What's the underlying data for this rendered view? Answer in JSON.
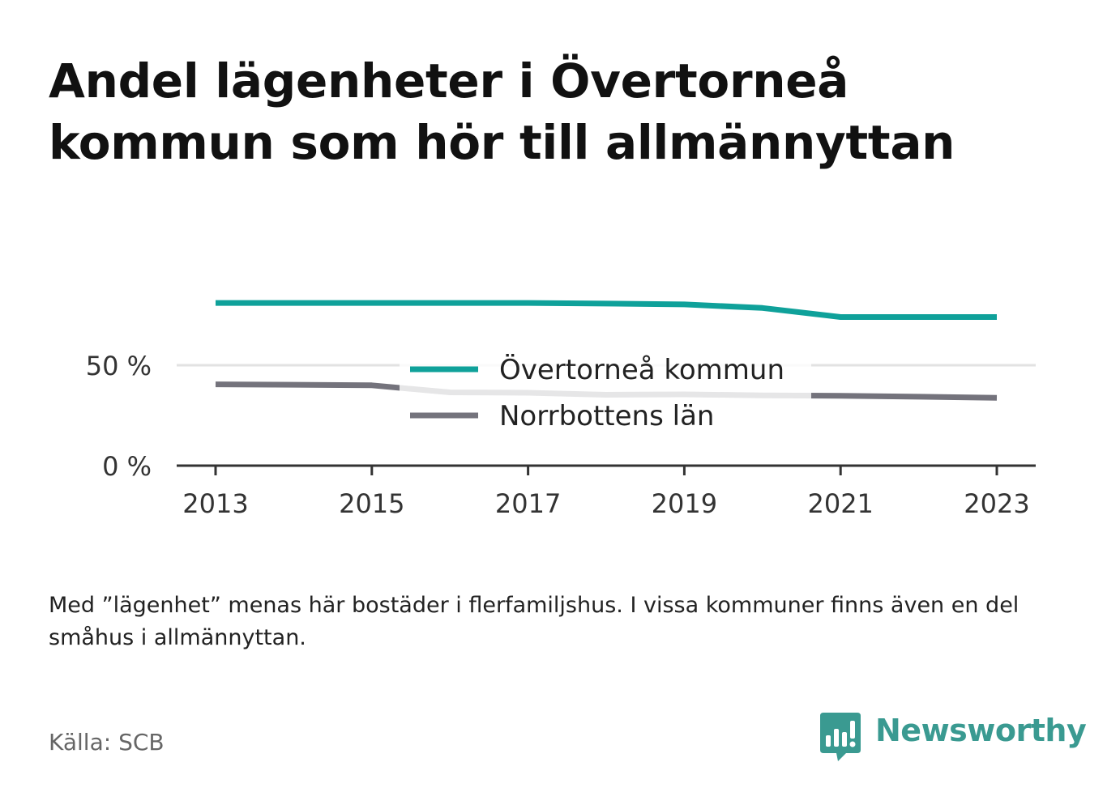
{
  "title": "Andel lägenheter i Övertorneå kommun som hör till allmännyttan",
  "note": "Med ”lägenhet” menas här bostäder i flerfamiljshus. I vissa kommuner finns även en del småhus i allmännyttan.",
  "source": "Källa: SCB",
  "brand": {
    "name": "Newsworthy",
    "icon": "bar-chart-speech-bubble-icon",
    "color": "#3a9a91"
  },
  "chart_data": {
    "type": "line",
    "x": [
      2013,
      2014,
      2015,
      2016,
      2017,
      2018,
      2019,
      2020,
      2021,
      2022,
      2023
    ],
    "x_ticks": [
      2013,
      2015,
      2017,
      2019,
      2021,
      2023
    ],
    "y_ticks": [
      0,
      50
    ],
    "y_tick_labels": [
      "0 %",
      "50 %"
    ],
    "ylim": [
      0,
      85
    ],
    "grid": true,
    "legend_position": "center",
    "series": [
      {
        "name": "Övertorneå kommun",
        "color": "#0fa19a",
        "values": [
          81,
          81,
          81,
          81,
          81,
          80.7,
          80.3,
          78.5,
          74,
          74,
          74
        ]
      },
      {
        "name": "Norrbottens län",
        "color": "#74737c",
        "values": [
          40.5,
          40.3,
          40,
          36.5,
          36.3,
          35.3,
          35.5,
          35,
          34.8,
          34.3,
          33.8
        ]
      }
    ]
  }
}
